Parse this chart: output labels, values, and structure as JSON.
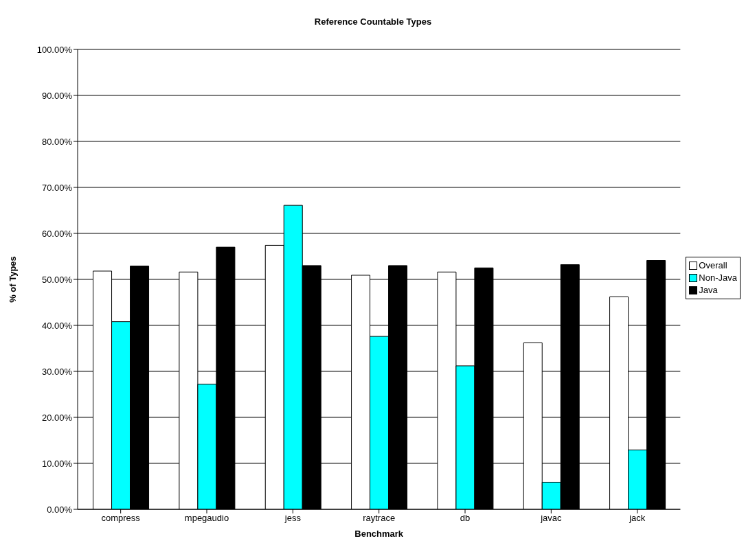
{
  "chart_data": {
    "type": "bar",
    "title": "Reference Countable Types",
    "xlabel": "Benchmark",
    "ylabel": "% of Types",
    "categories": [
      "compress",
      "mpegaudio",
      "jess",
      "raytrace",
      "db",
      "javac",
      "jack"
    ],
    "series": [
      {
        "name": "Overall",
        "color": "#ffffff",
        "values": [
          51.8,
          51.6,
          57.4,
          50.9,
          51.6,
          36.2,
          46.2
        ]
      },
      {
        "name": "Non-Java",
        "color": "#00ffff",
        "values": [
          40.8,
          27.2,
          66.1,
          37.6,
          31.2,
          5.9,
          12.9
        ]
      },
      {
        "name": "Java",
        "color": "#000000",
        "values": [
          52.9,
          57.0,
          53.0,
          53.0,
          52.5,
          53.2,
          54.1
        ]
      }
    ],
    "ylim": [
      0,
      100
    ],
    "yticks": [
      {
        "value": 0,
        "label": "0.00%"
      },
      {
        "value": 10,
        "label": "10.00%"
      },
      {
        "value": 20,
        "label": "20.00%"
      },
      {
        "value": 30,
        "label": "30.00%"
      },
      {
        "value": 40,
        "label": "40.00%"
      },
      {
        "value": 50,
        "label": "50.00%"
      },
      {
        "value": 60,
        "label": "60.00%"
      },
      {
        "value": 70,
        "label": "70.00%"
      },
      {
        "value": 80,
        "label": "80.00%"
      },
      {
        "value": 90,
        "label": "90.00%"
      },
      {
        "value": 100,
        "label": "100.00%"
      }
    ],
    "grid": "y",
    "legend": "right"
  }
}
